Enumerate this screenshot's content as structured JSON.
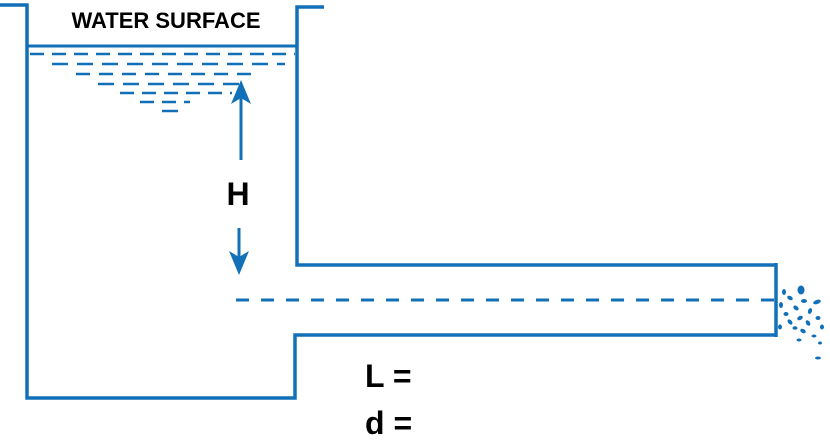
{
  "labels": {
    "water_surface": "WATER SURFACE",
    "head": "H",
    "length": "L =",
    "diameter": "d ="
  },
  "colors": {
    "line": "#1170b8",
    "text": "#000000",
    "background": "#ffffff"
  }
}
